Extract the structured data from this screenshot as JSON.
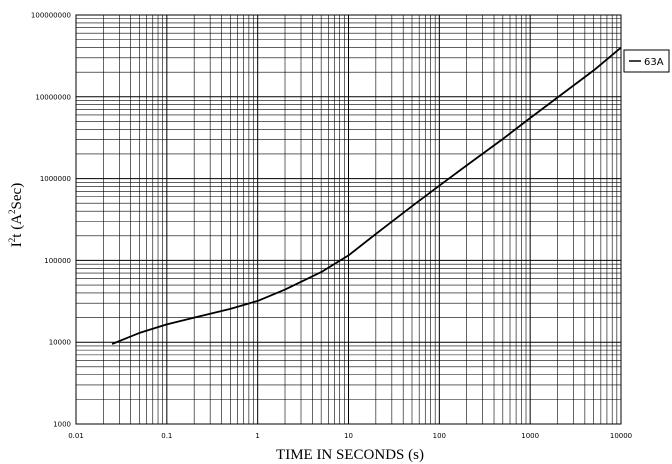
{
  "chart_data": {
    "type": "line",
    "title": "",
    "xlabel": "TIME IN SECONDS (s)",
    "ylabel_parts": {
      "base1": "I",
      "sup1": "2",
      "base2": "t (A",
      "sup2": "2",
      "base3": "Sec)"
    },
    "x_scale": "log",
    "y_scale": "log",
    "xlim": [
      0.01,
      10000
    ],
    "ylim": [
      1000,
      100000000
    ],
    "x_ticks": [
      {
        "value": 0.01,
        "label": "0.01"
      },
      {
        "value": 0.1,
        "label": "0.1"
      },
      {
        "value": 1,
        "label": "1"
      },
      {
        "value": 10,
        "label": "10"
      },
      {
        "value": 100,
        "label": "100"
      },
      {
        "value": 1000,
        "label": "1000"
      },
      {
        "value": 10000,
        "label": "10000"
      }
    ],
    "y_ticks": [
      {
        "value": 1000,
        "label": "1000"
      },
      {
        "value": 10000,
        "label": "10000"
      },
      {
        "value": 100000,
        "label": "100000"
      },
      {
        "value": 1000000,
        "label": "1000000"
      },
      {
        "value": 10000000,
        "label": "10000000"
      },
      {
        "value": 100000000,
        "label": "100000000"
      }
    ],
    "grid": true,
    "legend_position": "right",
    "series": [
      {
        "name": "63A",
        "color": "#000000",
        "x": [
          0.025,
          0.05,
          0.1,
          0.2,
          0.5,
          1,
          2,
          5,
          10,
          20,
          50,
          100,
          200,
          500,
          1000,
          2000,
          5000,
          10000
        ],
        "y": [
          9500,
          13000,
          16500,
          20000,
          25500,
          32000,
          44000,
          72000,
          115000,
          210000,
          460000,
          820000,
          1450000,
          3050000,
          5500000,
          9800000,
          21000000,
          40000000
        ]
      }
    ]
  }
}
